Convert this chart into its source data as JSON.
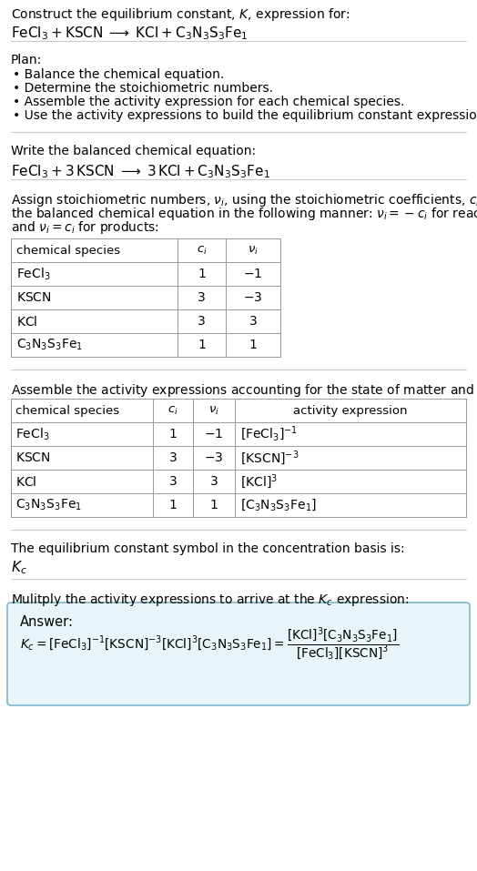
{
  "bg_color": "#ffffff",
  "text_color": "#000000",
  "title_line1": "Construct the equilibrium constant, $K$, expression for:",
  "title_line2": "$\\mathrm{FeCl_3 + KSCN \\;\\longrightarrow\\; KCl + C_3N_3S_3Fe_1}$",
  "plan_header": "Plan:",
  "plan_items": [
    "• Balance the chemical equation.",
    "• Determine the stoichiometric numbers.",
    "• Assemble the activity expression for each chemical species.",
    "• Use the activity expressions to build the equilibrium constant expression."
  ],
  "balanced_header": "Write the balanced chemical equation:",
  "balanced_eq": "$\\mathrm{FeCl_3 + 3\\,KSCN \\;\\longrightarrow\\; 3\\,KCl + C_3N_3S_3Fe_1}$",
  "stoich_lines": [
    "Assign stoichiometric numbers, $\\nu_i$, using the stoichiometric coefficients, $c_i$, from",
    "the balanced chemical equation in the following manner: $\\nu_i = -c_i$ for reactants",
    "and $\\nu_i = c_i$ for products:"
  ],
  "table1_headers": [
    "chemical species",
    "$c_i$",
    "$\\nu_i$"
  ],
  "table1_rows": [
    [
      "$\\mathrm{FeCl_3}$",
      "1",
      "$-1$"
    ],
    [
      "$\\mathrm{KSCN}$",
      "3",
      "$-3$"
    ],
    [
      "$\\mathrm{KCl}$",
      "3",
      "3"
    ],
    [
      "$\\mathrm{C_3N_3S_3Fe_1}$",
      "1",
      "1"
    ]
  ],
  "activity_header": "Assemble the activity expressions accounting for the state of matter and $\\nu_i$:",
  "table2_headers": [
    "chemical species",
    "$c_i$",
    "$\\nu_i$",
    "activity expression"
  ],
  "table2_rows": [
    [
      "$\\mathrm{FeCl_3}$",
      "1",
      "$-1$",
      "$[\\mathrm{FeCl_3}]^{-1}$"
    ],
    [
      "$\\mathrm{KSCN}$",
      "3",
      "$-3$",
      "$[\\mathrm{KSCN}]^{-3}$"
    ],
    [
      "$\\mathrm{KCl}$",
      "3",
      "3",
      "$[\\mathrm{KCl}]^3$"
    ],
    [
      "$\\mathrm{C_3N_3S_3Fe_1}$",
      "1",
      "1",
      "$[\\mathrm{C_3N_3S_3Fe_1}]$"
    ]
  ],
  "kc_symbol_header": "The equilibrium constant symbol in the concentration basis is:",
  "kc_symbol": "$K_c$",
  "multiply_header": "Mulitply the activity expressions to arrive at the $K_c$ expression:",
  "answer_label": "Answer:",
  "answer_box_color": "#e8f4f8",
  "answer_box_border": "#7ab8cc",
  "table_border_color": "#999999",
  "sep_line_color": "#cccccc"
}
